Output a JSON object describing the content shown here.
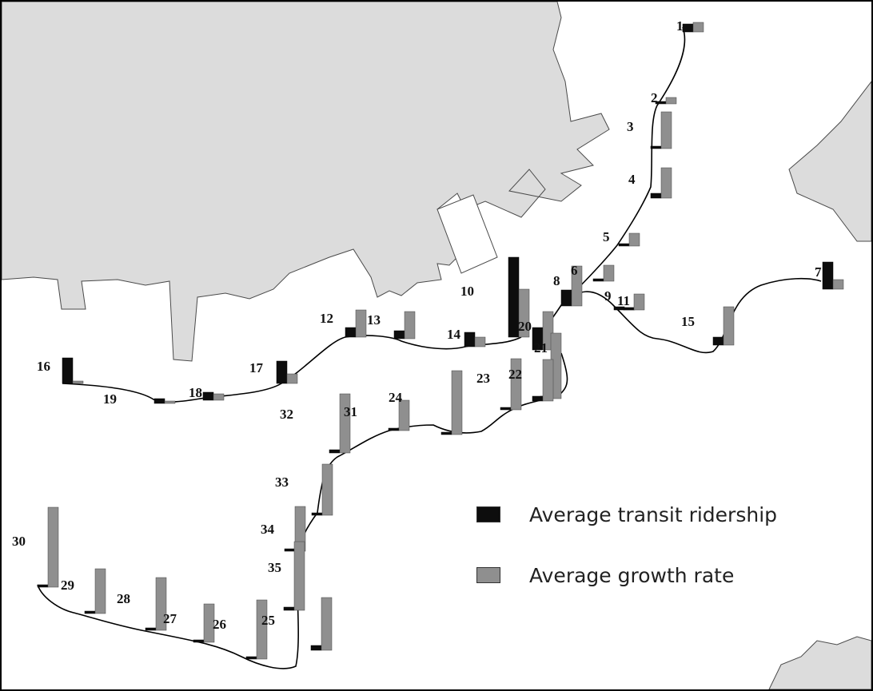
{
  "legend": {
    "ridership_label": "Average transit ridership",
    "growth_label": "Average growth rate"
  },
  "colors": {
    "land": "#dcdcdc",
    "coast": "#4a4a4a",
    "line": "#000000",
    "ridership": "#0d0d0d",
    "growth": "#8f8f8f"
  },
  "stations": [
    {
      "id": "1",
      "label": "1",
      "ridership": 0.05,
      "growth": 0.06
    },
    {
      "id": "2",
      "label": "2",
      "ridership": 0.01,
      "growth": 0.04
    },
    {
      "id": "3",
      "label": "3",
      "ridership": 0.01,
      "growth": 0.23
    },
    {
      "id": "4",
      "label": "4",
      "ridership": 0.03,
      "growth": 0.19
    },
    {
      "id": "5",
      "label": "5",
      "ridership": 0.01,
      "growth": 0.08
    },
    {
      "id": "6",
      "label": "6",
      "ridership": 0.01,
      "growth": 0.1
    },
    {
      "id": "7",
      "label": "7",
      "ridership": 0.17,
      "growth": 0.06
    },
    {
      "id": "8",
      "label": "8",
      "ridership": 0.1,
      "growth": 0.25
    },
    {
      "id": "9",
      "label": "9",
      "ridership": 0.02,
      "growth": 0.01
    },
    {
      "id": "10",
      "label": "10",
      "ridership": 0.5,
      "growth": 0.3
    },
    {
      "id": "11",
      "label": "11",
      "ridership": 0.01,
      "growth": 0.1
    },
    {
      "id": "12",
      "label": "12",
      "ridership": 0.06,
      "growth": 0.17
    },
    {
      "id": "13",
      "label": "13",
      "ridership": 0.05,
      "growth": 0.17
    },
    {
      "id": "14",
      "label": "14",
      "ridership": 0.09,
      "growth": 0.06
    },
    {
      "id": "15",
      "label": "15",
      "ridership": 0.05,
      "growth": 0.24
    },
    {
      "id": "16",
      "label": "16",
      "ridership": 0.16,
      "growth": 0.01
    },
    {
      "id": "17",
      "label": "17",
      "ridership": 0.14,
      "growth": 0.06
    },
    {
      "id": "18",
      "label": "18",
      "ridership": 0.05,
      "growth": 0.04
    },
    {
      "id": "19",
      "label": "19",
      "ridership": 0.03,
      "growth": 0.01
    },
    {
      "id": "20",
      "label": "20",
      "ridership": 0.14,
      "growth": 0.24
    },
    {
      "id": "21",
      "label": "21",
      "ridership": 0.01,
      "growth": 0.41
    },
    {
      "id": "22",
      "label": "22",
      "ridership": 0.03,
      "growth": 0.26
    },
    {
      "id": "23",
      "label": "23",
      "ridership": 0.01,
      "growth": 0.32
    },
    {
      "id": "24",
      "label": "24",
      "ridership": 0.01,
      "growth": 0.19
    },
    {
      "id": "25",
      "label": "25",
      "ridership": 0.03,
      "growth": 0.33
    },
    {
      "id": "26",
      "label": "26",
      "ridership": 0.01,
      "growth": 0.37
    },
    {
      "id": "27",
      "label": "27",
      "ridership": 0.01,
      "growth": 0.24
    },
    {
      "id": "28",
      "label": "28",
      "ridership": 0.01,
      "growth": 0.33
    },
    {
      "id": "29",
      "label": "29",
      "ridership": 0.01,
      "growth": 0.28
    },
    {
      "id": "30",
      "label": "30",
      "ridership": 0.01,
      "growth": 0.5
    },
    {
      "id": "31",
      "label": "31",
      "ridership": 0.02,
      "growth": 0.37
    },
    {
      "id": "32",
      "label": "32",
      "ridership": 0.01,
      "growth": 0.4
    },
    {
      "id": "33",
      "label": "33",
      "ridership": 0.01,
      "growth": 0.32
    },
    {
      "id": "34",
      "label": "34",
      "ridership": 0.01,
      "growth": 0.28
    },
    {
      "id": "35",
      "label": "35",
      "ridership": 0.02,
      "growth": 0.43
    }
  ]
}
